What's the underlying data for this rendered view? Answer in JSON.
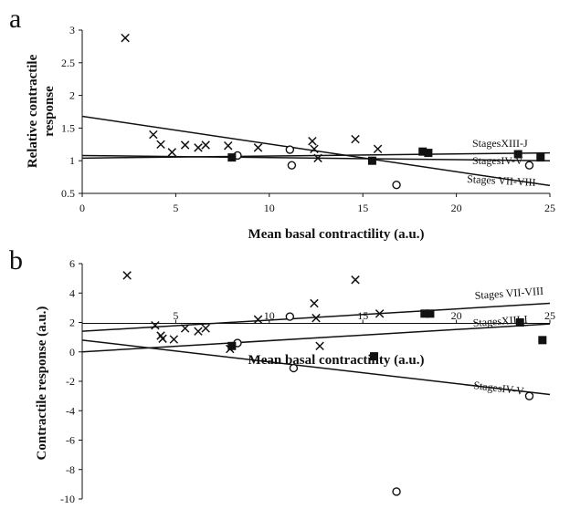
{
  "chart_data": [
    {
      "type": "scatter",
      "panel": "a",
      "xlabel": "Mean basal contractility (a.u.)",
      "ylabel": "Relative contractile response",
      "xlim": [
        0,
        25
      ],
      "ylim": [
        0.5,
        3
      ],
      "x_ticks": [
        "0",
        "5",
        "10",
        "15",
        "20",
        "25"
      ],
      "y_ticks": [
        "0.5",
        "1",
        "1.5",
        "2",
        "2.5",
        "3"
      ],
      "grid": false,
      "series": [
        {
          "marker": "cross",
          "points": [
            [
              2.3,
              2.88
            ],
            [
              3.8,
              1.4
            ],
            [
              4.2,
              1.25
            ],
            [
              4.8,
              1.13
            ],
            [
              5.5,
              1.24
            ],
            [
              6.2,
              1.2
            ],
            [
              6.6,
              1.24
            ],
            [
              7.8,
              1.23
            ],
            [
              9.4,
              1.2
            ],
            [
              12.3,
              1.3
            ],
            [
              12.4,
              1.18
            ],
            [
              12.6,
              1.04
            ],
            [
              14.6,
              1.33
            ],
            [
              15.8,
              1.18
            ]
          ]
        },
        {
          "marker": "circle",
          "points": [
            [
              8.3,
              1.08
            ],
            [
              11.1,
              1.17
            ],
            [
              11.2,
              0.93
            ],
            [
              16.8,
              0.63
            ],
            [
              23.9,
              0.93
            ]
          ]
        },
        {
          "marker": "square",
          "points": [
            [
              8.0,
              1.05
            ],
            [
              15.5,
              1.0
            ],
            [
              18.2,
              1.14
            ],
            [
              18.5,
              1.12
            ],
            [
              23.3,
              1.1
            ],
            [
              24.5,
              1.05
            ]
          ]
        }
      ],
      "lines": [
        {
          "label": "StagesXIII-J",
          "x": [
            0,
            25
          ],
          "y": [
            1.04,
            1.12
          ]
        },
        {
          "label": "StagesIV-V",
          "x": [
            0,
            25
          ],
          "y": [
            1.08,
            1.0
          ]
        },
        {
          "label": "Stages VII-VIII",
          "x": [
            0,
            25
          ],
          "y": [
            1.68,
            0.62
          ]
        }
      ]
    },
    {
      "type": "scatter",
      "panel": "b",
      "xlabel": "Mean basal contractility (a.u.)",
      "ylabel": "Contractile response (a.u.)",
      "xlim": [
        0,
        25
      ],
      "ylim": [
        -10,
        6
      ],
      "x_ticks": [
        "5",
        "10",
        "15",
        "20",
        "25"
      ],
      "y_ticks": [
        "-10",
        "-8",
        "-6",
        "-4",
        "-2",
        "0",
        "2",
        "4",
        "6"
      ],
      "grid": false,
      "series": [
        {
          "marker": "cross",
          "points": [
            [
              2.4,
              5.2
            ],
            [
              3.9,
              1.8
            ],
            [
              4.2,
              1.1
            ],
            [
              4.3,
              0.9
            ],
            [
              4.9,
              0.85
            ],
            [
              5.5,
              1.6
            ],
            [
              6.2,
              1.4
            ],
            [
              6.6,
              1.6
            ],
            [
              7.9,
              0.2
            ],
            [
              9.4,
              2.2
            ],
            [
              12.4,
              3.3
            ],
            [
              12.5,
              2.3
            ],
            [
              12.7,
              0.4
            ],
            [
              14.6,
              4.9
            ],
            [
              15.9,
              2.6
            ]
          ]
        },
        {
          "marker": "circle",
          "points": [
            [
              8.3,
              0.6
            ],
            [
              11.1,
              2.4
            ],
            [
              11.3,
              -1.1
            ],
            [
              16.8,
              -9.5
            ],
            [
              23.9,
              -3.0
            ]
          ]
        },
        {
          "marker": "square",
          "points": [
            [
              8.0,
              0.4
            ],
            [
              15.6,
              -0.3
            ],
            [
              18.3,
              2.6
            ],
            [
              18.6,
              2.6
            ],
            [
              23.4,
              2.0
            ],
            [
              24.6,
              0.8
            ]
          ]
        }
      ],
      "lines": [
        {
          "label": "Stages VII-VIII",
          "x": [
            0,
            25
          ],
          "y": [
            1.4,
            3.3
          ]
        },
        {
          "label": "StagesXIII-I",
          "x": [
            0,
            25
          ],
          "y": [
            0.0,
            1.9
          ]
        },
        {
          "label": "StagesIV-V",
          "x": [
            0,
            25
          ],
          "y": [
            0.8,
            -2.9
          ]
        }
      ]
    }
  ]
}
